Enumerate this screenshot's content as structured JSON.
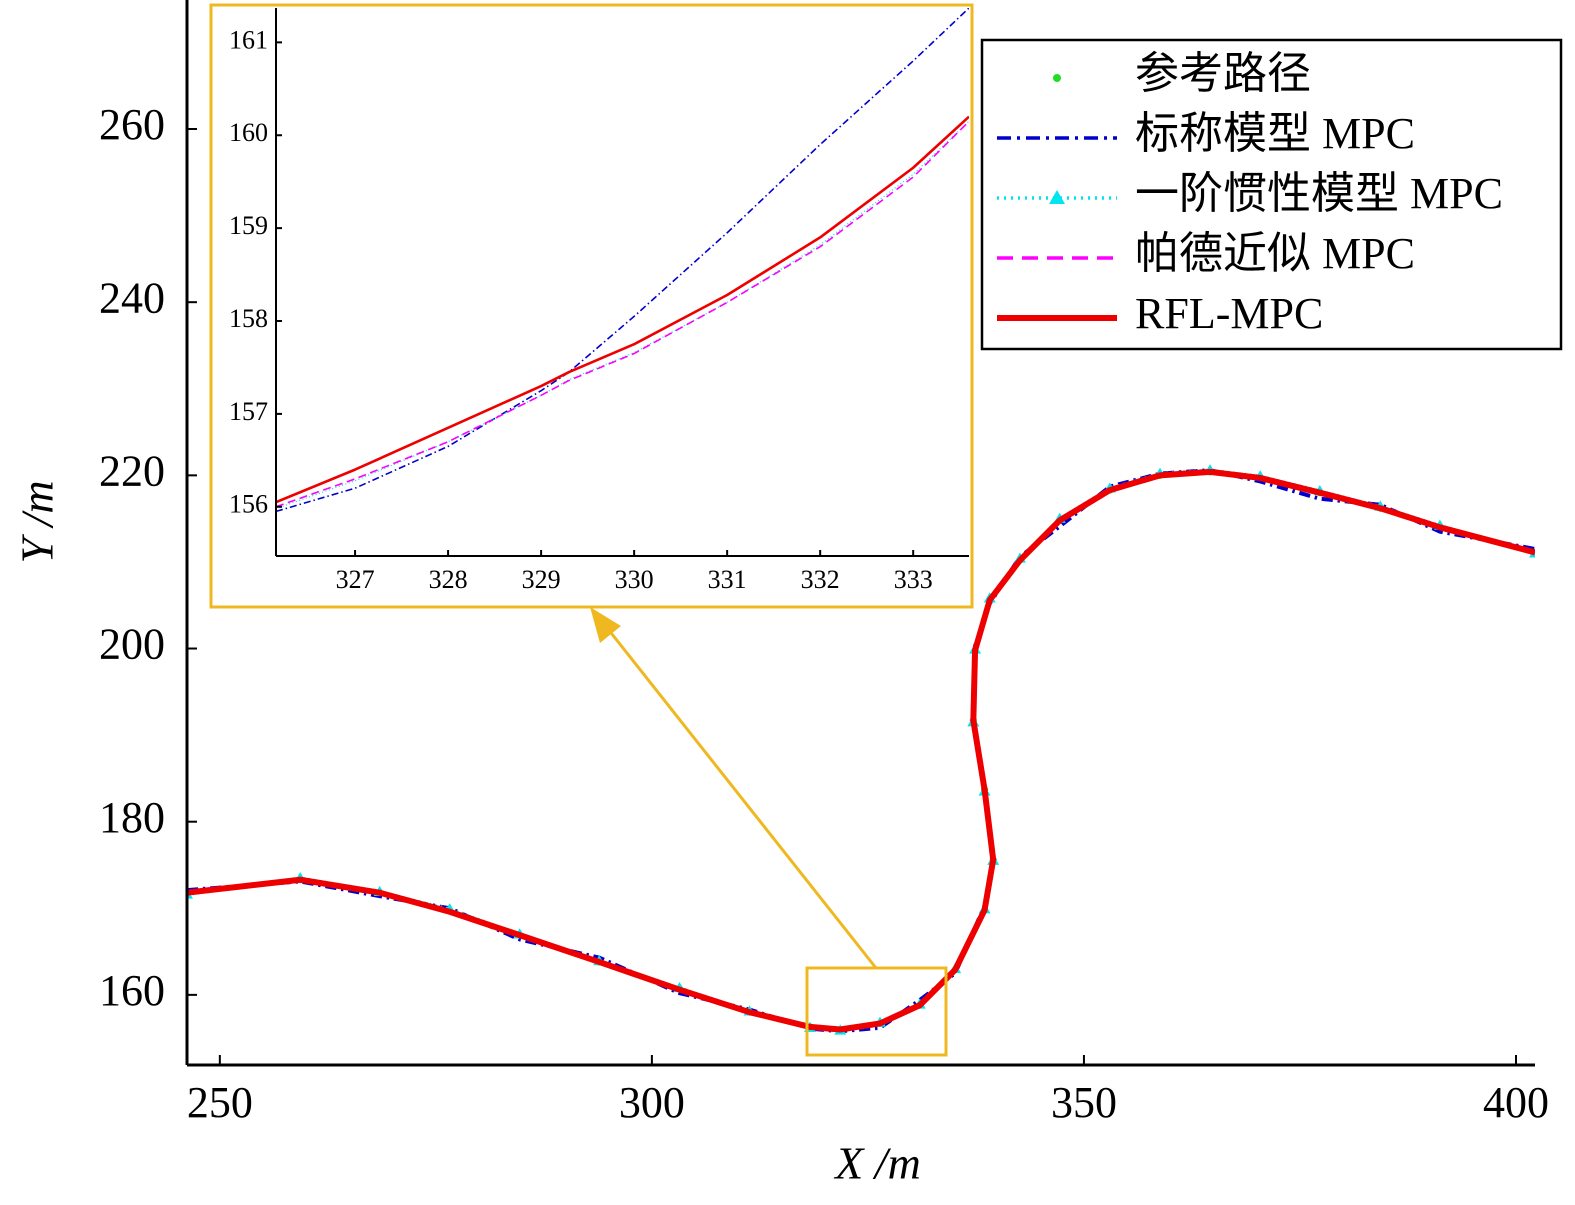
{
  "chart_data": [
    {
      "type": "line",
      "xlabel": "X /m",
      "ylabel": "Y /m",
      "xlim": [
        246.2,
        402.2
      ],
      "ylim": [
        151.9,
        274.9
      ],
      "xticks": [
        250,
        300,
        350,
        400
      ],
      "yticks": [
        160,
        180,
        200,
        220,
        240,
        260
      ],
      "legend": "upper right",
      "x": [
        246.2,
        259.3,
        268.5,
        276.6,
        284.7,
        293.9,
        303.2,
        311.3,
        318.3,
        321.8,
        326.4,
        331.0,
        335.1,
        338.5,
        339.5,
        338.5,
        337.2,
        337.4,
        339.1,
        342.6,
        347.2,
        353.0,
        358.8,
        364.6,
        370.4,
        377.3,
        384.3,
        391.2,
        402.2
      ],
      "series": [
        {
          "name": "参考路径",
          "color": "#22dd22",
          "linestyle": "none",
          "marker": "dot",
          "values": [
            171.8,
            173.3,
            171.8,
            169.7,
            166.9,
            163.8,
            160.7,
            158.0,
            156.3,
            156.0,
            156.7,
            158.8,
            162.9,
            169.8,
            175.6,
            183.7,
            191.7,
            199.8,
            205.6,
            210.2,
            214.8,
            218.3,
            220.0,
            220.4,
            219.7,
            218.0,
            216.2,
            214.0,
            211.1
          ]
        },
        {
          "name": "标称模型 MPC",
          "color": "#0000cc",
          "linestyle": "dashdot",
          "marker": "none",
          "values": [
            172.1,
            173.1,
            171.4,
            170.0,
            166.4,
            164.3,
            160.2,
            158.3,
            156.1,
            155.8,
            156.2,
            159.4,
            162.5,
            170.3,
            175.1,
            184.2,
            191.3,
            200.3,
            205.2,
            210.6,
            214.1,
            218.7,
            220.2,
            220.6,
            219.3,
            217.3,
            216.6,
            213.5,
            211.5
          ]
        },
        {
          "name": "一阶惯性模型 MPC",
          "color": "#00e5ee",
          "linestyle": "dotted",
          "marker": "triangle",
          "values": [
            171.6,
            173.5,
            171.9,
            169.9,
            167.0,
            163.9,
            160.8,
            158.1,
            156.2,
            155.9,
            156.8,
            158.9,
            163.0,
            169.9,
            175.5,
            183.5,
            191.5,
            199.9,
            205.8,
            210.4,
            215.0,
            218.5,
            220.2,
            220.6,
            219.9,
            218.2,
            216.4,
            214.2,
            211.0
          ]
        },
        {
          "name": "帕德近似 MPC",
          "color": "#ff00ff",
          "linestyle": "dashed",
          "marker": "none",
          "values": [
            171.7,
            173.3,
            171.8,
            169.6,
            166.9,
            163.8,
            160.6,
            158.0,
            156.2,
            155.9,
            156.7,
            158.8,
            162.9,
            169.8,
            175.6,
            183.6,
            191.7,
            199.8,
            205.7,
            210.3,
            214.9,
            218.4,
            220.1,
            220.5,
            219.8,
            218.1,
            216.3,
            214.1,
            211.1
          ]
        },
        {
          "name": "RFL-MPC",
          "color": "#ee0000",
          "linestyle": "solid",
          "marker": "none",
          "values": [
            171.8,
            173.3,
            171.8,
            169.6,
            166.9,
            163.8,
            160.6,
            158.0,
            156.3,
            156.0,
            156.7,
            158.8,
            162.9,
            169.8,
            175.6,
            183.7,
            191.7,
            199.8,
            205.6,
            210.2,
            214.8,
            218.3,
            220.0,
            220.4,
            219.7,
            218.0,
            216.2,
            214.0,
            211.1
          ]
        }
      ]
    },
    {
      "type": "line",
      "xlim": [
        326.15,
        333.6
      ],
      "ylim": [
        155.47,
        161.37
      ],
      "xticks": [
        327,
        328,
        329,
        330,
        331,
        332,
        333
      ],
      "yticks": [
        156,
        157,
        158,
        159,
        160,
        161
      ],
      "x": [
        326.15,
        327,
        328,
        329,
        329.3,
        330,
        331,
        332,
        333,
        333.6
      ],
      "series": [
        {
          "color": "#0000cc",
          "linestyle": "dashdot",
          "marker": "none",
          "values": [
            155.95,
            156.2,
            156.65,
            157.25,
            157.45,
            158.05,
            158.95,
            159.9,
            160.8,
            161.37
          ]
        },
        {
          "color": "#00e5ee",
          "linestyle": "dotted",
          "marker": "none",
          "values": [
            155.98,
            156.28,
            156.7,
            157.2,
            157.37,
            157.66,
            158.2,
            158.82,
            159.58,
            160.15
          ]
        },
        {
          "color": "#ff00ff",
          "linestyle": "dashed",
          "marker": "none",
          "values": [
            156.0,
            156.3,
            156.7,
            157.2,
            157.36,
            157.65,
            158.2,
            158.8,
            159.55,
            160.15
          ]
        },
        {
          "color": "#ee0000",
          "linestyle": "solid",
          "marker": "none",
          "values": [
            156.05,
            156.4,
            156.85,
            157.3,
            157.45,
            157.75,
            158.28,
            158.9,
            159.65,
            160.2
          ]
        }
      ]
    }
  ]
}
